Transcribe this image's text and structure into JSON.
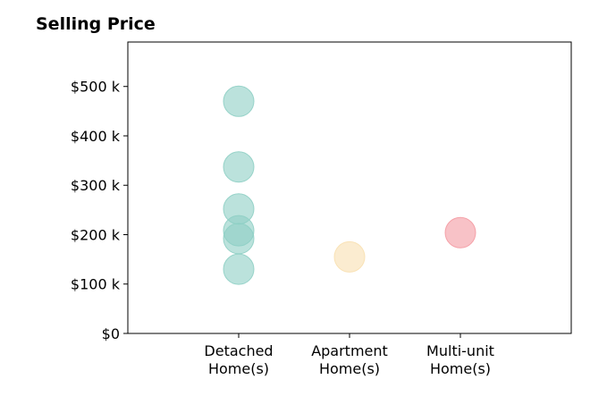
{
  "chart_data": {
    "type": "scatter",
    "title": "Selling Price",
    "xlabel": "",
    "ylabel": "",
    "categories": [
      [
        "Detached",
        "Home(s)"
      ],
      [
        "Apartment",
        "Home(s)"
      ],
      [
        "Multi-unit",
        "Home(s)"
      ]
    ],
    "yticks": [
      0,
      100000,
      200000,
      300000,
      400000,
      500000
    ],
    "ytick_labels": [
      "$0",
      "$100 k",
      "$200 k",
      "$300 k",
      "$400 k",
      "$500 k"
    ],
    "ylim": [
      0,
      590000
    ],
    "xlim": [
      -1,
      3
    ],
    "grid": false,
    "points": [
      {
        "category": 0,
        "y": 470000,
        "color": "#8ecfc4"
      },
      {
        "category": 0,
        "y": 337000,
        "color": "#8ecfc4"
      },
      {
        "category": 0,
        "y": 252000,
        "color": "#8ecfc4"
      },
      {
        "category": 0,
        "y": 208000,
        "color": "#8ecfc4"
      },
      {
        "category": 0,
        "y": 192000,
        "color": "#8ecfc4"
      },
      {
        "category": 0,
        "y": 130000,
        "color": "#8ecfc4"
      },
      {
        "category": 1,
        "y": 155000,
        "color": "#f8e0b0"
      },
      {
        "category": 2,
        "y": 204000,
        "color": "#f49aa2"
      }
    ]
  }
}
